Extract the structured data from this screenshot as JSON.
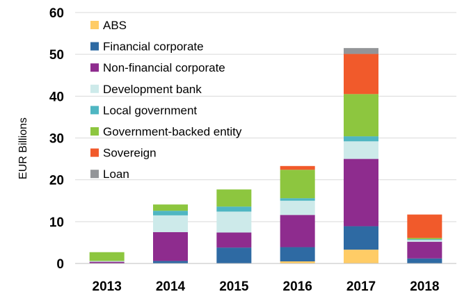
{
  "chart_data": {
    "type": "bar",
    "stacked": true,
    "title": "",
    "xlabel": "",
    "ylabel": "EUR Billions",
    "ylim": [
      0,
      60
    ],
    "yticks": [
      0,
      10,
      20,
      30,
      40,
      50,
      60
    ],
    "grid": true,
    "legend_position": "top-left",
    "categories": [
      "2013",
      "2014",
      "2015",
      "2016",
      "2017",
      "2018"
    ],
    "series": [
      {
        "name": "ABS",
        "color": "#FFCC66",
        "values": [
          0,
          0,
          0,
          0.5,
          3.3,
          0
        ]
      },
      {
        "name": "Financial corporate",
        "color": "#2E6AA3",
        "values": [
          0,
          0.6,
          3.8,
          3.4,
          5.6,
          1.2
        ]
      },
      {
        "name": "Non-financial corporate",
        "color": "#8E2C8E",
        "values": [
          0.4,
          6.9,
          3.6,
          7.7,
          16.1,
          4.0
        ]
      },
      {
        "name": "Development bank",
        "color": "#CDEAEA",
        "values": [
          0.2,
          4.0,
          5.0,
          3.4,
          4.2,
          0.4
        ]
      },
      {
        "name": "Local government",
        "color": "#4FB6C2",
        "values": [
          0,
          1.1,
          1.2,
          0.6,
          1.2,
          0.2
        ]
      },
      {
        "name": "Government-backed entity",
        "color": "#8DC63F",
        "values": [
          2.1,
          1.5,
          4.1,
          6.8,
          10.1,
          0.3
        ]
      },
      {
        "name": "Sovereign",
        "color": "#F15A2B",
        "values": [
          0,
          0,
          0,
          0.9,
          9.6,
          5.6
        ]
      },
      {
        "name": "Loan",
        "color": "#939598",
        "values": [
          0,
          0,
          0,
          0,
          1.4,
          0
        ]
      }
    ]
  }
}
